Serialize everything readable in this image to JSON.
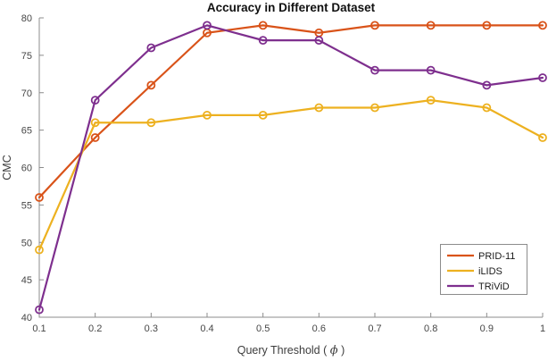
{
  "chart_data": {
    "type": "line",
    "title": "Accuracy in Different Dataset",
    "xlabel_prefix": "Query Threshold ( ",
    "xlabel_symbol": "ϕ",
    "xlabel_suffix": " )",
    "ylabel": "CMC",
    "x": [
      0.1,
      0.2,
      0.3,
      0.4,
      0.5,
      0.6,
      0.7,
      0.8,
      0.9,
      1.0
    ],
    "x_tick_labels": [
      "0.1",
      "0.2",
      "0.3",
      "0.4",
      "0.5",
      "0.6",
      "0.7",
      "0.8",
      "0.9",
      "1"
    ],
    "y_ticks": [
      40,
      45,
      50,
      55,
      60,
      65,
      70,
      75,
      80
    ],
    "xlim": [
      0.1,
      1.0
    ],
    "ylim": [
      40,
      80
    ],
    "grid": false,
    "legend_position": "lower right",
    "axis_color": "#8c8c8c",
    "tick_text_color": "#464646",
    "series": [
      {
        "name": "PRID-11",
        "color": "#D95319",
        "values": [
          56,
          64,
          71,
          78,
          79,
          78,
          79,
          79,
          79,
          79
        ]
      },
      {
        "name": "iLIDS",
        "color": "#EDB120",
        "values": [
          49,
          66,
          66,
          67,
          67,
          68,
          68,
          69,
          68,
          64
        ]
      },
      {
        "name": "TRiViD",
        "color": "#7E2F8E",
        "values": [
          41,
          69,
          76,
          79,
          77,
          77,
          73,
          73,
          71,
          72
        ]
      }
    ]
  }
}
